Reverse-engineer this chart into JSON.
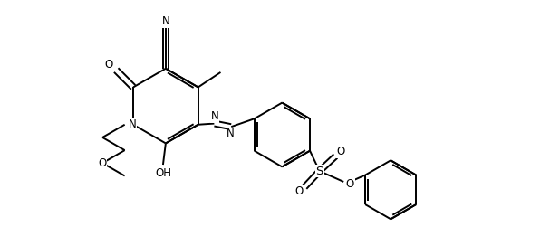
{
  "background_color": "#ffffff",
  "line_color": "#000000",
  "line_width": 1.4,
  "figure_width": 5.96,
  "figure_height": 2.72,
  "dpi": 100,
  "xlim": [
    0,
    10
  ],
  "ylim": [
    0,
    4.56
  ]
}
